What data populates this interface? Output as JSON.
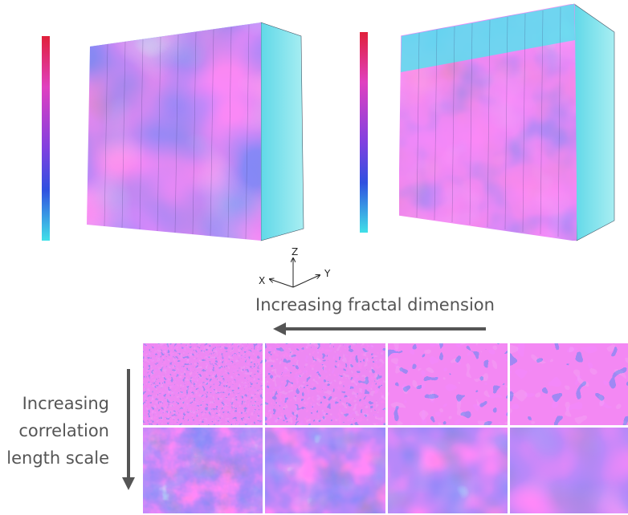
{
  "axes": {
    "z": "Z",
    "x": "X",
    "y": "Y"
  },
  "arrows": {
    "horizontal": "Increasing fractal dimension",
    "vertical": [
      "Increasing",
      "correlation",
      "length scale"
    ]
  }
}
